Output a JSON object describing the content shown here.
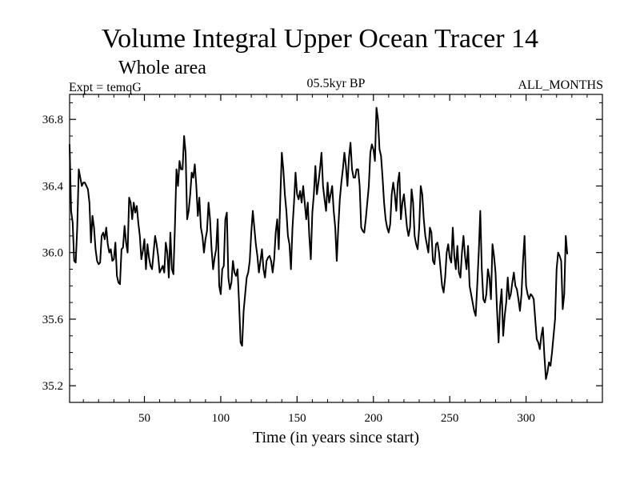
{
  "chart_data": {
    "type": "line",
    "title": "Volume Integral Upper Ocean Tracer 14",
    "subtitle": "Whole area",
    "experiment_label": "Expt = temqG",
    "period_label": "05.5kyr BP",
    "months_label": "ALL_MONTHS",
    "xlabel": "Time (in years since start)",
    "ylabel": "",
    "xlim": [
      1,
      350
    ],
    "ylim": [
      35.1,
      36.95
    ],
    "xticks": [
      50,
      100,
      150,
      200,
      250,
      300
    ],
    "yticks": [
      35.2,
      35.6,
      36.0,
      36.4,
      36.8
    ],
    "ytick_labels": [
      "35.2",
      "35.6",
      "36.0",
      "36.4",
      "36.8"
    ],
    "series": [
      {
        "name": "Tracer 14",
        "x_start": 1,
        "x_step": 1,
        "values": [
          36.65,
          36.25,
          36.18,
          35.95,
          35.94,
          36.15,
          36.5,
          36.45,
          36.4,
          36.42,
          36.42,
          36.4,
          36.38,
          36.3,
          36.06,
          36.22,
          36.15,
          36.02,
          35.95,
          35.93,
          35.94,
          36.1,
          36.12,
          36.08,
          36.15,
          36.05,
          36.0,
          36.02,
          35.95,
          35.96,
          36.06,
          35.86,
          35.82,
          35.81,
          36.02,
          36.03,
          36.16,
          36.06,
          36.0,
          36.33,
          36.3,
          36.2,
          36.3,
          36.24,
          36.28,
          36.18,
          36.1,
          35.96,
          36.01,
          36.08,
          35.9,
          36.05,
          35.97,
          35.92,
          35.9,
          36.0,
          36.1,
          36.05,
          35.98,
          35.88,
          35.9,
          35.92,
          35.88,
          36.06,
          36.0,
          35.85,
          36.12,
          35.9,
          35.87,
          36.16,
          36.5,
          36.4,
          36.55,
          36.5,
          36.5,
          36.7,
          36.6,
          36.2,
          36.25,
          36.35,
          36.48,
          36.45,
          36.53,
          36.4,
          36.22,
          36.33,
          36.15,
          36.1,
          36.0,
          36.08,
          36.13,
          36.3,
          36.2,
          36.02,
          35.9,
          35.97,
          36.02,
          36.2,
          35.8,
          35.75,
          35.9,
          35.92,
          36.2,
          36.24,
          35.85,
          35.78,
          35.82,
          35.95,
          35.88,
          35.86,
          35.9,
          35.7,
          35.46,
          35.44,
          35.65,
          35.75,
          35.85,
          35.88,
          35.95,
          36.12,
          36.25,
          36.15,
          36.05,
          35.98,
          35.88,
          35.95,
          36.02,
          35.9,
          35.85,
          35.95,
          35.97,
          35.98,
          35.95,
          35.88,
          35.96,
          36.12,
          36.2,
          36.02,
          36.32,
          36.6,
          36.5,
          36.35,
          36.25,
          36.1,
          36.05,
          35.9,
          36.15,
          36.3,
          36.48,
          36.35,
          36.32,
          36.37,
          36.3,
          36.4,
          36.3,
          36.2,
          36.3,
          36.1,
          35.96,
          36.24,
          36.35,
          36.52,
          36.35,
          36.42,
          36.5,
          36.6,
          36.4,
          36.32,
          36.25,
          36.42,
          36.3,
          36.35,
          36.4,
          36.25,
          36.15,
          35.95,
          36.15,
          36.32,
          36.42,
          36.5,
          36.6,
          36.52,
          36.4,
          36.57,
          36.66,
          36.5,
          36.45,
          36.45,
          36.5,
          36.5,
          36.4,
          36.15,
          36.13,
          36.12,
          36.2,
          36.3,
          36.4,
          36.6,
          36.65,
          36.62,
          36.55,
          36.87,
          36.8,
          36.62,
          36.58,
          36.45,
          36.3,
          36.2,
          36.15,
          36.12,
          36.17,
          36.35,
          36.42,
          36.35,
          36.25,
          36.42,
          36.48,
          36.2,
          36.3,
          36.35,
          36.25,
          36.15,
          36.1,
          36.15,
          36.38,
          36.3,
          36.1,
          36.05,
          36.02,
          36.15,
          36.4,
          36.35,
          36.2,
          36.1,
          36.05,
          36.0,
          36.15,
          36.12,
          35.95,
          35.93,
          36.05,
          36.06,
          36.0,
          35.9,
          35.8,
          35.76,
          35.85,
          36.0,
          36.05,
          35.97,
          35.94,
          36.15,
          35.98,
          35.9,
          36.04,
          35.88,
          35.85,
          36.0,
          36.1,
          35.98,
          35.9,
          36.04,
          35.8,
          35.75,
          35.7,
          35.65,
          35.62,
          35.8,
          36.0,
          36.25,
          35.9,
          35.72,
          35.7,
          35.75,
          35.9,
          35.85,
          35.72,
          36.05,
          35.98,
          35.88,
          35.65,
          35.46,
          35.68,
          35.78,
          35.5,
          35.62,
          35.7,
          35.85,
          35.72,
          35.75,
          35.82,
          35.88,
          35.8,
          35.78,
          35.72,
          35.65,
          35.75,
          35.95,
          36.1,
          35.8,
          35.75,
          35.72,
          35.75,
          35.74,
          35.72,
          35.6,
          35.48,
          35.46,
          35.42,
          35.5,
          35.55,
          35.38,
          35.24,
          35.28,
          35.34,
          35.32,
          35.4,
          35.5,
          35.6,
          35.9,
          36.0,
          35.98,
          35.95,
          35.66,
          35.75,
          36.1,
          35.99
        ]
      }
    ]
  }
}
